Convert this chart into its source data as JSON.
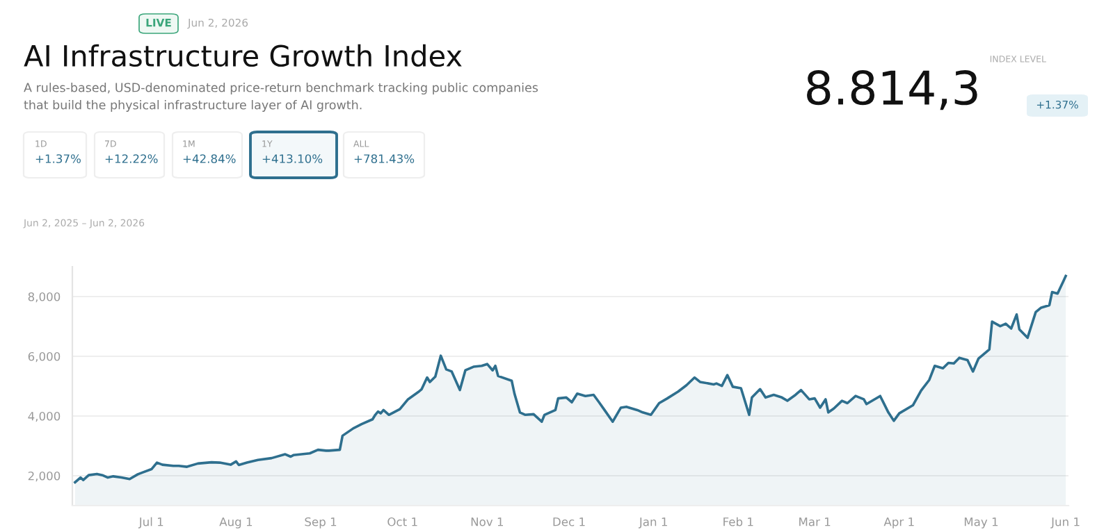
{
  "chart_data": {
    "type": "area",
    "title": "AI Infrastructure Growth Index",
    "subtitle": "A rules-based, USD-denominated price-return benchmark tracking public companies\nthat build the physical infrastructure layer of AI growth.",
    "annotations": [
      "LIVE",
      "Jun 2, 2026",
      "INDEX LEVEL",
      "8.814,3",
      "+1.37%",
      "1D",
      "+1.37%",
      "7D",
      "+12.22%",
      "1M",
      "+42.84%",
      "1Y",
      "+413.10%",
      "ALL",
      "+781.43%",
      "Jun 2, 2025 – Jun 2, 2026"
    ],
    "x": [
      "2025-06-03",
      "2025-06-05",
      "2025-06-06",
      "2025-06-08",
      "2025-06-11",
      "2025-06-13",
      "2025-06-15",
      "2025-06-17",
      "2025-06-20",
      "2025-06-23",
      "2025-06-26",
      "2025-06-28",
      "2025-07-01",
      "2025-07-03",
      "2025-07-05",
      "2025-07-09",
      "2025-07-11",
      "2025-07-14",
      "2025-07-18",
      "2025-07-23",
      "2025-07-26",
      "2025-07-30",
      "2025-08-01",
      "2025-08-02",
      "2025-08-05",
      "2025-08-09",
      "2025-08-14",
      "2025-08-19",
      "2025-08-21",
      "2025-08-22",
      "2025-08-28",
      "2025-08-31",
      "2025-09-03",
      "2025-09-04",
      "2025-09-08",
      "2025-09-09",
      "2025-09-13",
      "2025-09-16",
      "2025-09-20",
      "2025-09-21",
      "2025-09-22",
      "2025-09-23",
      "2025-09-24",
      "2025-09-26",
      "2025-09-30",
      "2025-10-03",
      "2025-10-07",
      "2025-10-08",
      "2025-10-10",
      "2025-10-11",
      "2025-10-13",
      "2025-10-15",
      "2025-10-17",
      "2025-10-19",
      "2025-10-22",
      "2025-10-24",
      "2025-10-27",
      "2025-10-30",
      "2025-11-01",
      "2025-11-03",
      "2025-11-04",
      "2025-11-05",
      "2025-11-10",
      "2025-11-11",
      "2025-11-13",
      "2025-11-15",
      "2025-11-18",
      "2025-11-21",
      "2025-11-22",
      "2025-11-26",
      "2025-11-27",
      "2025-11-30",
      "2025-12-02",
      "2025-12-04",
      "2025-12-07",
      "2025-12-10",
      "2025-12-12",
      "2025-12-14",
      "2025-12-17",
      "2025-12-20",
      "2025-12-22",
      "2025-12-26",
      "2025-12-28",
      "2025-12-31",
      "2026-01-03",
      "2026-01-06",
      "2026-01-10",
      "2026-01-13",
      "2026-01-16",
      "2026-01-18",
      "2026-01-23",
      "2026-01-24",
      "2026-01-26",
      "2026-01-28",
      "2026-01-30",
      "2026-02-02",
      "2026-02-05",
      "2026-02-06",
      "2026-02-09",
      "2026-02-11",
      "2026-02-14",
      "2026-02-17",
      "2026-02-19",
      "2026-02-22",
      "2026-02-24",
      "2026-02-27",
      "2026-03-01",
      "2026-03-03",
      "2026-03-05",
      "2026-03-06",
      "2026-03-08",
      "2026-03-11",
      "2026-03-13",
      "2026-03-16",
      "2026-03-19",
      "2026-03-20",
      "2026-03-25",
      "2026-03-28",
      "2026-03-30",
      "2026-04-01",
      "2026-04-06",
      "2026-04-09",
      "2026-04-12",
      "2026-04-14",
      "2026-04-17",
      "2026-04-19",
      "2026-04-21",
      "2026-04-23",
      "2026-04-26",
      "2026-04-28",
      "2026-04-30",
      "2026-05-04",
      "2026-05-05",
      "2026-05-08",
      "2026-05-10",
      "2026-05-12",
      "2026-05-14",
      "2026-05-15",
      "2026-05-18",
      "2026-05-21",
      "2026-05-23",
      "2026-05-26",
      "2026-05-27",
      "2026-05-29",
      "2026-05-31",
      "2026-06-01"
    ],
    "series": [
      {
        "color": "#2e6f8e",
        "values": [
          1780,
          1940,
          1860,
          2020,
          2060,
          2020,
          1940,
          1980,
          1940,
          1890,
          2050,
          2120,
          2220,
          2440,
          2370,
          2330,
          2330,
          2300,
          2410,
          2450,
          2440,
          2370,
          2480,
          2360,
          2440,
          2530,
          2590,
          2720,
          2640,
          2690,
          2750,
          2870,
          2840,
          2840,
          2870,
          3340,
          3590,
          3730,
          3890,
          4040,
          4150,
          4090,
          4200,
          4040,
          4230,
          4560,
          4820,
          4900,
          5290,
          5140,
          5320,
          6020,
          5560,
          5490,
          4870,
          5530,
          5650,
          5680,
          5740,
          5530,
          5680,
          5340,
          5180,
          4750,
          4120,
          4040,
          4060,
          3810,
          4040,
          4200,
          4590,
          4620,
          4460,
          4750,
          4670,
          4710,
          4460,
          4200,
          3810,
          4280,
          4310,
          4200,
          4120,
          4040,
          4430,
          4590,
          4820,
          5030,
          5290,
          5140,
          5060,
          5090,
          5010,
          5370,
          4980,
          4930,
          4040,
          4620,
          4900,
          4620,
          4710,
          4620,
          4510,
          4710,
          4870,
          4560,
          4590,
          4280,
          4560,
          4120,
          4250,
          4510,
          4430,
          4670,
          4560,
          4400,
          4670,
          4120,
          3840,
          4090,
          4360,
          4850,
          5210,
          5680,
          5600,
          5780,
          5760,
          5950,
          5870,
          5490,
          5920,
          6230,
          7160,
          7010,
          7090,
          6930,
          7400,
          6900,
          6620,
          7480,
          7630,
          7710,
          8150,
          8100,
          8490,
          8690
        ]
      }
    ],
    "xlim": [
      "2025-06-02",
      "2026-06-02"
    ],
    "xticks": [
      {
        "value": "2025-07-01",
        "label": "Jul 1"
      },
      {
        "value": "2025-08-01",
        "label": "Aug 1"
      },
      {
        "value": "2025-09-01",
        "label": "Sep 1"
      },
      {
        "value": "2025-10-01",
        "label": "Oct 1"
      },
      {
        "value": "2025-11-01",
        "label": "Nov 1"
      },
      {
        "value": "2025-12-01",
        "label": "Dec 1"
      },
      {
        "value": "2026-01-01",
        "label": "Jan 1"
      },
      {
        "value": "2026-02-01",
        "label": "Feb 1"
      },
      {
        "value": "2026-03-01",
        "label": "Mar 1"
      },
      {
        "value": "2026-04-01",
        "label": "Apr 1"
      },
      {
        "value": "2026-05-01",
        "label": "May 1"
      },
      {
        "value": "2026-06-01",
        "label": "Jun 1"
      }
    ],
    "ylim": [
      1000,
      9000
    ],
    "yticks": [
      {
        "value": 2000,
        "label": "2,000"
      },
      {
        "value": 4000,
        "label": "4,000"
      },
      {
        "value": 6000,
        "label": "6,000"
      },
      {
        "value": 8000,
        "label": "8,000"
      }
    ],
    "grid": "y"
  }
}
